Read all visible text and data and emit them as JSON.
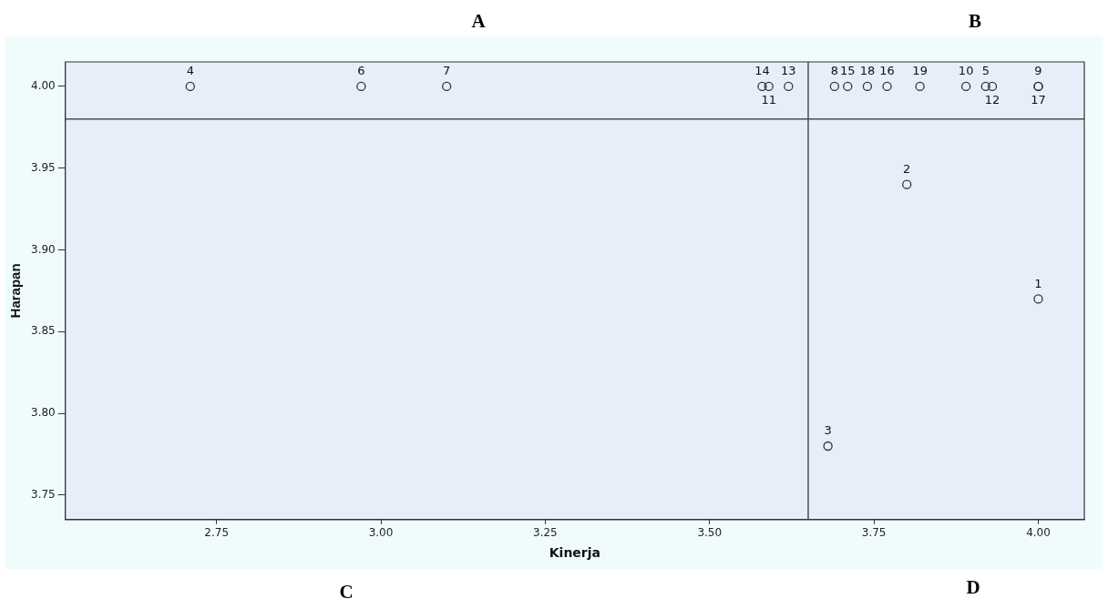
{
  "chart_data": {
    "type": "scatter",
    "xlabel": "Kinerja",
    "ylabel": "Harapan",
    "x": [
      4.0,
      3.8,
      3.68,
      2.71,
      3.92,
      2.97,
      3.1,
      3.69,
      4.0,
      3.89,
      3.59,
      3.93,
      3.62,
      3.58,
      3.71,
      3.77,
      4.0,
      3.74,
      3.82
    ],
    "series": [
      {
        "color": "#333333",
        "values": [
          3.87,
          3.94,
          3.78,
          4.0,
          4.0,
          4.0,
          4.0,
          4.0,
          4.0,
          4.0,
          4.0,
          4.0,
          4.0,
          4.0,
          4.0,
          4.0,
          4.0,
          4.0,
          4.0
        ]
      }
    ],
    "marker": "circle",
    "grid": false,
    "legend": false,
    "xlim": [
      2.52,
      4.07
    ],
    "ylim": [
      3.735,
      4.015
    ],
    "xticks": [
      {
        "value": 2.75,
        "label": "2.75"
      },
      {
        "value": 3,
        "label": "3.00"
      },
      {
        "value": 3.25,
        "label": "3.25"
      },
      {
        "value": 3.5,
        "label": "3.50"
      },
      {
        "value": 3.75,
        "label": "3.75"
      },
      {
        "value": 4,
        "label": "4.00"
      }
    ],
    "yticks": [
      {
        "value": 3.75,
        "label": "3.75"
      },
      {
        "value": 3.8,
        "label": "3.80"
      },
      {
        "value": 3.85,
        "label": "3.85"
      },
      {
        "value": 3.9,
        "label": "3.90"
      },
      {
        "value": 3.95,
        "label": "3.95"
      },
      {
        "value": 4,
        "label": "4.00"
      }
    ],
    "ref_lines": [
      {
        "axis": "y",
        "value": 3.98,
        "color": "#4d4d4d"
      },
      {
        "axis": "x",
        "value": 3.65,
        "color": "#4d4d4d"
      }
    ],
    "annotations": [
      "A",
      "B",
      "C",
      "D",
      {
        "text": "1",
        "x": 4.0,
        "y": 3.87
      },
      {
        "text": "2",
        "x": 3.8,
        "y": 3.94
      },
      {
        "text": "3",
        "x": 3.68,
        "y": 3.78
      },
      {
        "text": "4",
        "x": 2.71,
        "y": 4.0
      },
      {
        "text": "5",
        "x": 3.92,
        "y": 4.0
      },
      {
        "text": "6",
        "x": 2.97,
        "y": 4.0
      },
      {
        "text": "7",
        "x": 3.1,
        "y": 4.0
      },
      {
        "text": "8",
        "x": 3.69,
        "y": 4.0
      },
      {
        "text": "9",
        "x": 4.0,
        "y": 4.0
      },
      {
        "text": "10",
        "x": 3.89,
        "y": 4.0
      },
      {
        "text": "11",
        "x": 3.59,
        "y": 4.0
      },
      {
        "text": "12",
        "x": 3.93,
        "y": 4.0
      },
      {
        "text": "13",
        "x": 3.62,
        "y": 4.0
      },
      {
        "text": "14",
        "x": 3.58,
        "y": 4.0
      },
      {
        "text": "15",
        "x": 3.71,
        "y": 4.0
      },
      {
        "text": "16",
        "x": 3.77,
        "y": 4.0
      },
      {
        "text": "17",
        "x": 4.0,
        "y": 4.0
      },
      {
        "text": "18",
        "x": 3.74,
        "y": 4.0
      },
      {
        "text": "19",
        "x": 3.82,
        "y": 4.0
      }
    ]
  }
}
